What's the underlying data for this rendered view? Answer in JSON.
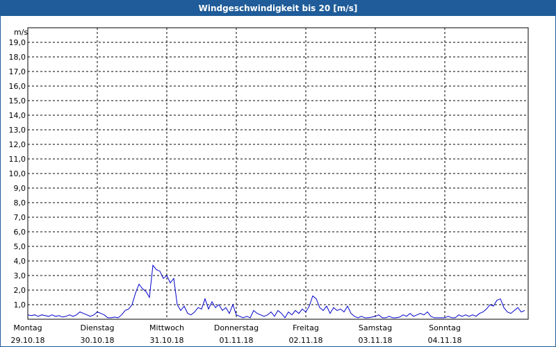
{
  "window": {
    "title": "Windgeschwindigkeit bis 20 [m/s]"
  },
  "colors": {
    "frame": "#1f5c99",
    "line": "#0000cc",
    "grid": "#000000"
  },
  "chart_data": {
    "type": "line",
    "title": "Windgeschwindigkeit bis 20 [m/s]",
    "ylabel": "m/s",
    "ylim": [
      0,
      20
    ],
    "xlim": [
      0,
      7.2
    ],
    "yticks": [
      "1,0",
      "2,0",
      "3,0",
      "4,0",
      "5,0",
      "6,0",
      "7,0",
      "8,0",
      "9,0",
      "10,0",
      "11,0",
      "12,0",
      "13,0",
      "14,0",
      "15,0",
      "16,0",
      "17,0",
      "18,0",
      "19,0"
    ],
    "grid": true,
    "days": [
      {
        "weekday": "Montag",
        "date": "29.10.18"
      },
      {
        "weekday": "Dienstag",
        "date": "30.10.18"
      },
      {
        "weekday": "Mittwoch",
        "date": "31.10.18"
      },
      {
        "weekday": "Donnerstag",
        "date": "01.11.18"
      },
      {
        "weekday": "Freitag",
        "date": "02.11.18"
      },
      {
        "weekday": "Samstag",
        "date": "03.11.18"
      },
      {
        "weekday": "Sonntag",
        "date": "04.11.18"
      }
    ],
    "series": [
      {
        "x": [
          0.0,
          0.05,
          0.1,
          0.15,
          0.2,
          0.25,
          0.3,
          0.35,
          0.4,
          0.45,
          0.5,
          0.55,
          0.6,
          0.65,
          0.7,
          0.75,
          0.8,
          0.85,
          0.9,
          0.95,
          1.0,
          1.05,
          1.1,
          1.15,
          1.2,
          1.25,
          1.3,
          1.35,
          1.4,
          1.45,
          1.5,
          1.55,
          1.6,
          1.65,
          1.7,
          1.75,
          1.8,
          1.85,
          1.9,
          1.95,
          2.0,
          2.05,
          2.1,
          2.15,
          2.2,
          2.25,
          2.3,
          2.35,
          2.4,
          2.45,
          2.5,
          2.55,
          2.6,
          2.65,
          2.7,
          2.75,
          2.8,
          2.85,
          2.9,
          2.95,
          3.0,
          3.05,
          3.1,
          3.15,
          3.2,
          3.25,
          3.3,
          3.35,
          3.4,
          3.45,
          3.5,
          3.55,
          3.6,
          3.65,
          3.7,
          3.75,
          3.8,
          3.85,
          3.9,
          3.95,
          4.0,
          4.05,
          4.1,
          4.15,
          4.2,
          4.25,
          4.3,
          4.35,
          4.4,
          4.45,
          4.5,
          4.55,
          4.6,
          4.65,
          4.7,
          4.75,
          4.8,
          4.85,
          4.9,
          4.95,
          5.0,
          5.05,
          5.1,
          5.15,
          5.2,
          5.25,
          5.3,
          5.35,
          5.4,
          5.45,
          5.5,
          5.55,
          5.6,
          5.65,
          5.7,
          5.75,
          5.8,
          5.85,
          5.9,
          5.95,
          6.0,
          6.05,
          6.1,
          6.15,
          6.2,
          6.25,
          6.3,
          6.35,
          6.4,
          6.45,
          6.5,
          6.55,
          6.6,
          6.65,
          6.7,
          6.75,
          6.8,
          6.85,
          6.9,
          6.95,
          7.0,
          7.05,
          7.1,
          7.15
        ],
        "y": [
          0.3,
          0.25,
          0.3,
          0.2,
          0.3,
          0.25,
          0.2,
          0.3,
          0.2,
          0.25,
          0.15,
          0.2,
          0.3,
          0.2,
          0.3,
          0.5,
          0.4,
          0.3,
          0.2,
          0.3,
          0.5,
          0.4,
          0.3,
          0.1,
          0.1,
          0.15,
          0.1,
          0.3,
          0.6,
          0.7,
          1.0,
          1.8,
          2.4,
          2.1,
          1.9,
          1.5,
          3.7,
          3.4,
          3.3,
          2.8,
          3.0,
          2.5,
          2.8,
          1.0,
          0.6,
          0.9,
          0.4,
          0.3,
          0.5,
          0.8,
          0.7,
          1.4,
          0.7,
          1.2,
          0.8,
          1.0,
          0.6,
          0.8,
          0.4,
          1.0,
          0.3,
          0.2,
          0.1,
          0.2,
          0.1,
          0.6,
          0.4,
          0.3,
          0.2,
          0.3,
          0.5,
          0.2,
          0.6,
          0.4,
          0.1,
          0.5,
          0.3,
          0.6,
          0.4,
          0.7,
          0.5,
          0.9,
          1.6,
          1.4,
          0.8,
          0.6,
          0.9,
          0.4,
          0.8,
          0.6,
          0.7,
          0.5,
          0.9,
          0.4,
          0.2,
          0.1,
          0.2,
          0.1,
          0.1,
          0.15,
          0.2,
          0.3,
          0.1,
          0.1,
          0.2,
          0.1,
          0.1,
          0.15,
          0.3,
          0.2,
          0.4,
          0.2,
          0.3,
          0.4,
          0.3,
          0.5,
          0.2,
          0.1,
          0.1,
          0.1,
          0.1,
          0.2,
          0.1,
          0.1,
          0.3,
          0.2,
          0.3,
          0.2,
          0.3,
          0.2,
          0.4,
          0.5,
          0.7,
          1.0,
          0.9,
          1.3,
          1.4,
          0.8,
          0.5,
          0.4,
          0.6,
          0.8,
          0.5,
          0.6
        ]
      }
    ]
  }
}
